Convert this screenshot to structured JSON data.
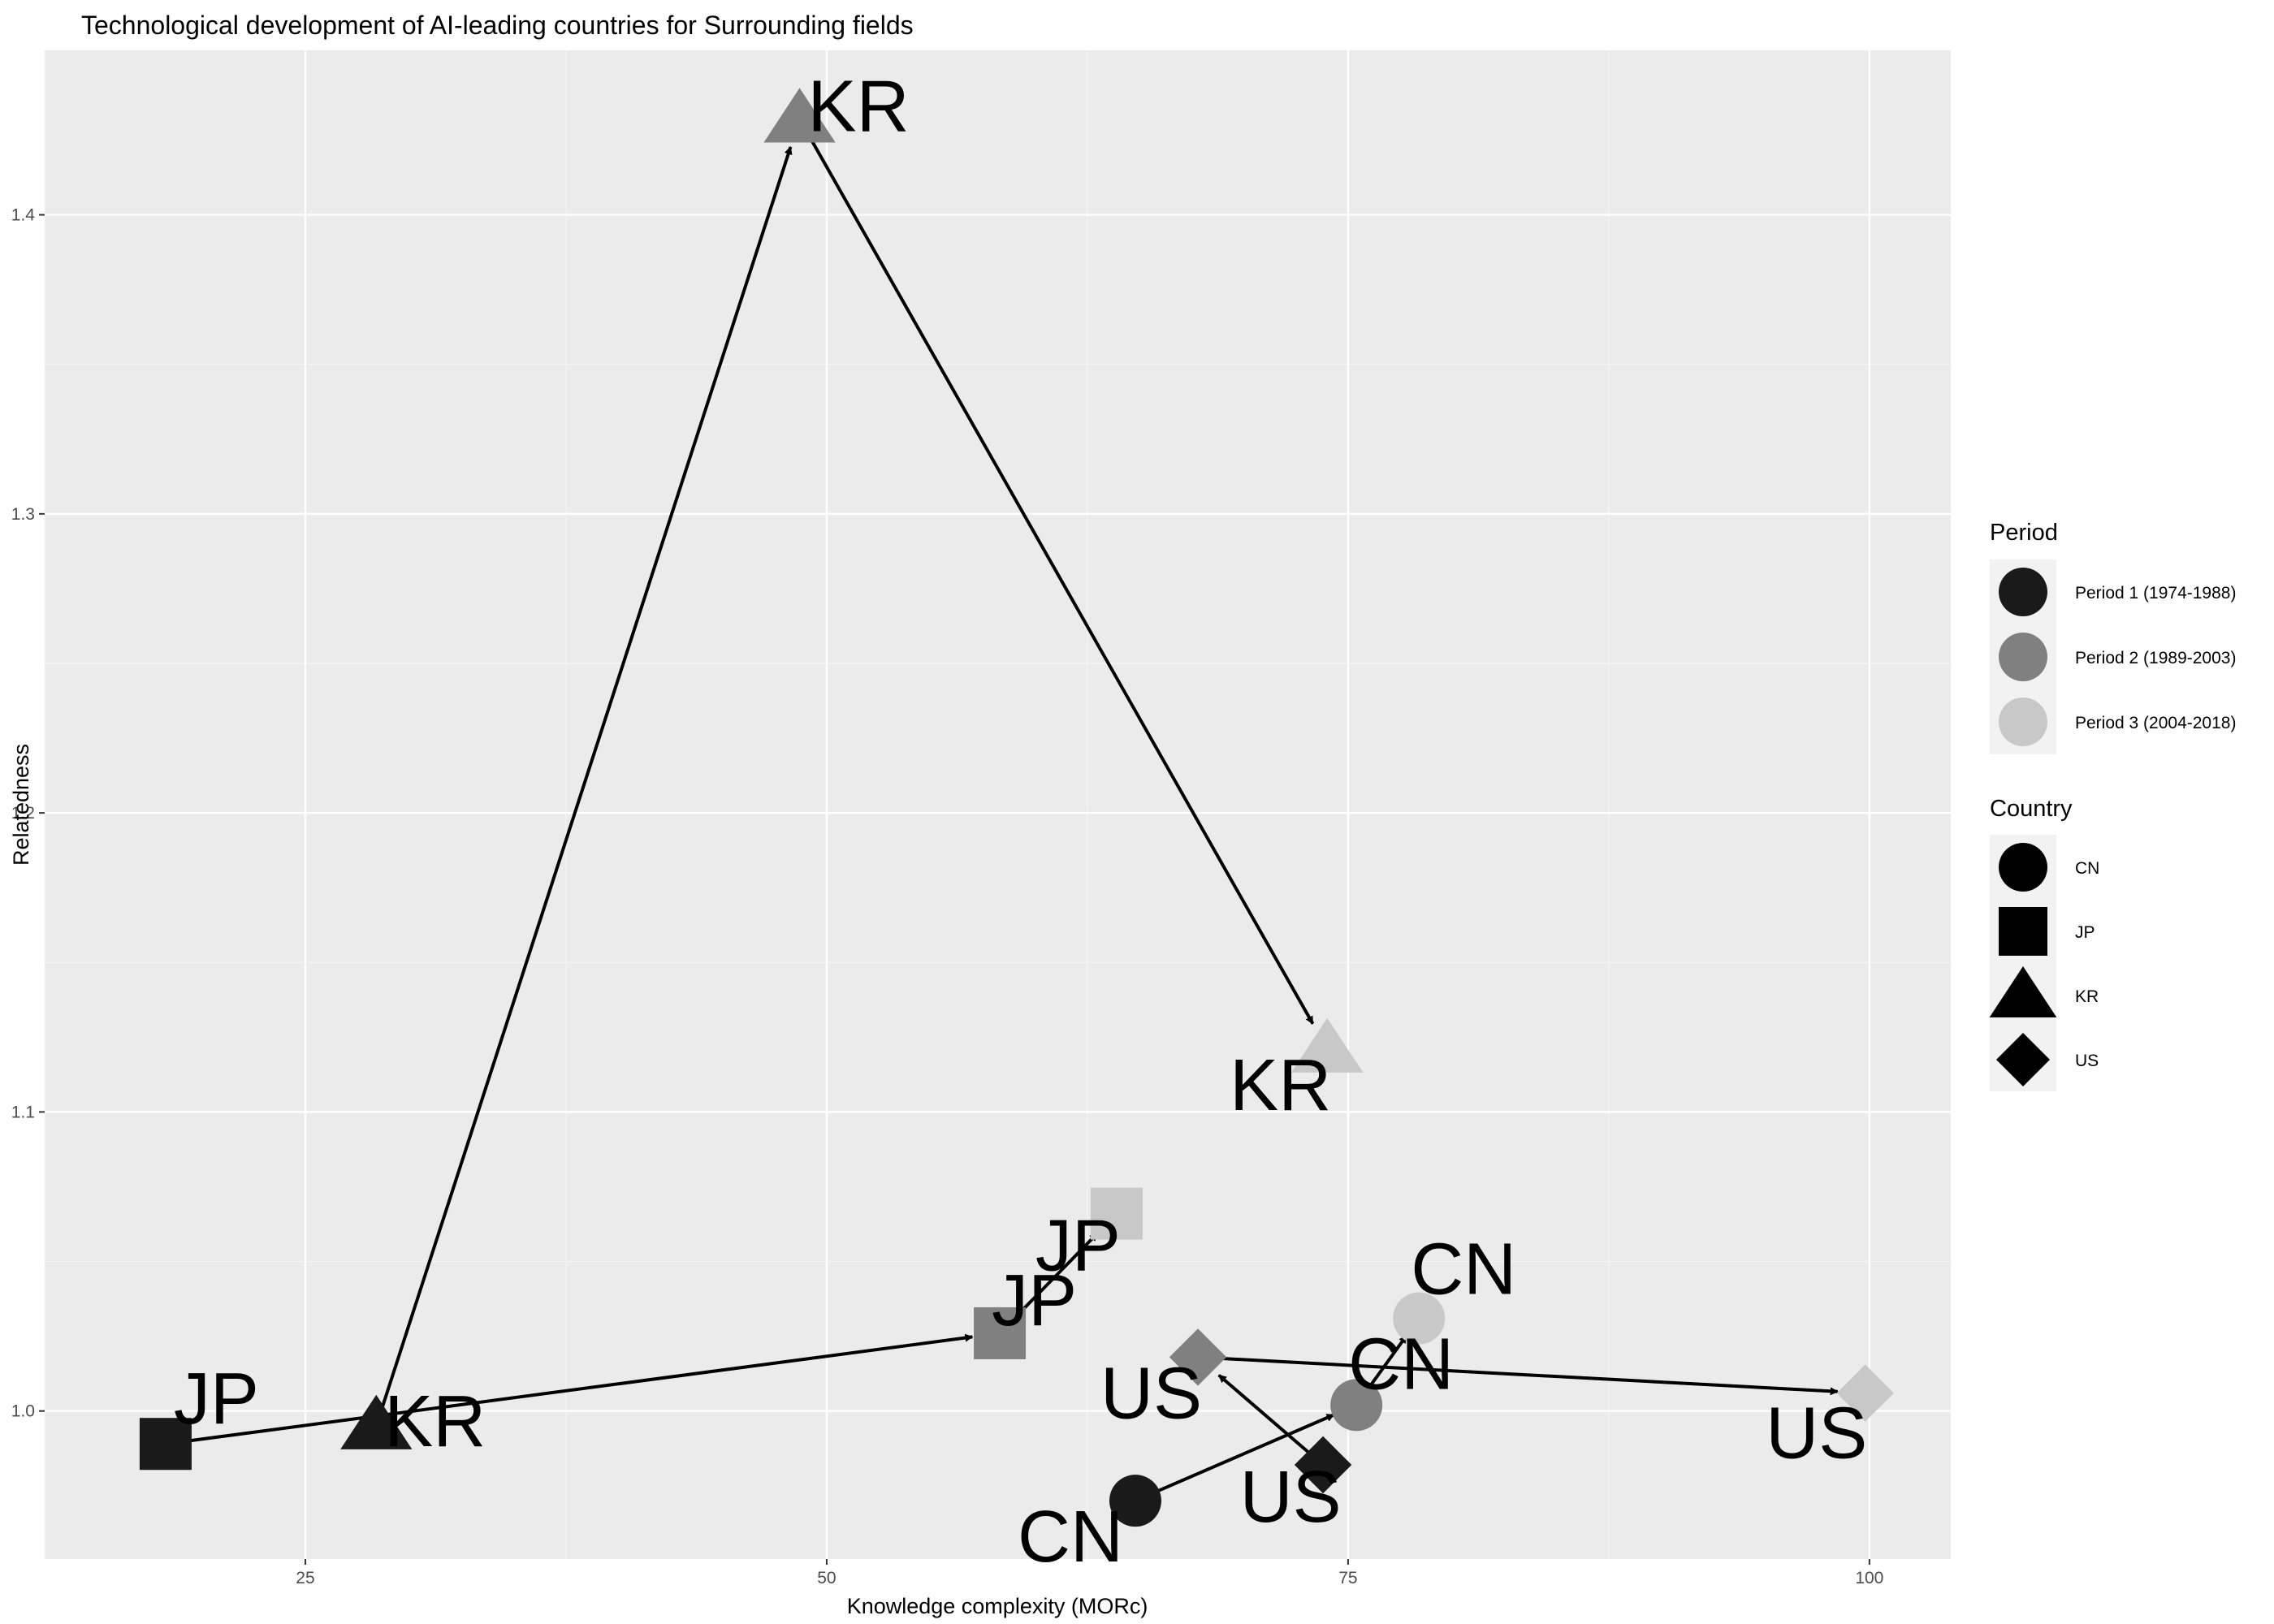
{
  "chart_data": {
    "type": "scatter",
    "title": "Technological development of AI-leading countries for Surrounding fields",
    "xlabel": "Knowledge complexity (MORc)",
    "ylabel": "Relatedness",
    "xlim": [
      12.5,
      103.9
    ],
    "ylim": [
      0.9505,
      1.455
    ],
    "x_ticks": [
      25,
      50,
      75,
      100
    ],
    "y_ticks": [
      1.0,
      1.1,
      1.2,
      1.3,
      1.4
    ],
    "y_tick_labels": [
      "1.0",
      "1.1",
      "1.2",
      "1.3",
      "1.4"
    ],
    "grid": true,
    "periods": [
      {
        "key": "p1",
        "label": "Period 1 (1974-1988)",
        "color": "#1a1a1a"
      },
      {
        "key": "p2",
        "label": "Period 2 (1989-2003)",
        "color": "#808080"
      },
      {
        "key": "p3",
        "label": "Period 3 (2004-2018)",
        "color": "#c8c8c8"
      }
    ],
    "countries": [
      {
        "key": "CN",
        "label": "CN",
        "shape": "circle"
      },
      {
        "key": "JP",
        "label": "JP",
        "shape": "square"
      },
      {
        "key": "KR",
        "label": "KR",
        "shape": "triangle"
      },
      {
        "key": "US",
        "label": "US",
        "shape": "diamond"
      }
    ],
    "series": [
      {
        "country": "CN",
        "points": [
          {
            "period": "p1",
            "x": 64.8,
            "y": 0.97,
            "label": "CN"
          },
          {
            "period": "p2",
            "x": 75.4,
            "y": 1.002,
            "label": "CN"
          },
          {
            "period": "p3",
            "x": 78.4,
            "y": 1.031,
            "label": "CN"
          }
        ]
      },
      {
        "country": "JP",
        "points": [
          {
            "period": "p1",
            "x": 18.3,
            "y": 0.989,
            "label": "JP"
          },
          {
            "period": "p2",
            "x": 58.3,
            "y": 1.026,
            "label": "JP"
          },
          {
            "period": "p3",
            "x": 63.9,
            "y": 1.066,
            "label": "JP"
          }
        ]
      },
      {
        "country": "KR",
        "points": [
          {
            "period": "p1",
            "x": 28.4,
            "y": 0.995,
            "label": "KR"
          },
          {
            "period": "p2",
            "x": 48.7,
            "y": 1.432,
            "label": "KR"
          },
          {
            "period": "p3",
            "x": 74.0,
            "y": 1.121,
            "label": "KR"
          }
        ]
      },
      {
        "country": "US",
        "points": [
          {
            "period": "p1",
            "x": 73.8,
            "y": 0.982,
            "label": "US"
          },
          {
            "period": "p2",
            "x": 67.8,
            "y": 1.018,
            "label": "US"
          },
          {
            "period": "p3",
            "x": 99.8,
            "y": 1.006,
            "label": "US"
          }
        ]
      }
    ],
    "legend_placement": "right",
    "legend_titles": {
      "period": "Period",
      "country": "Country"
    }
  }
}
